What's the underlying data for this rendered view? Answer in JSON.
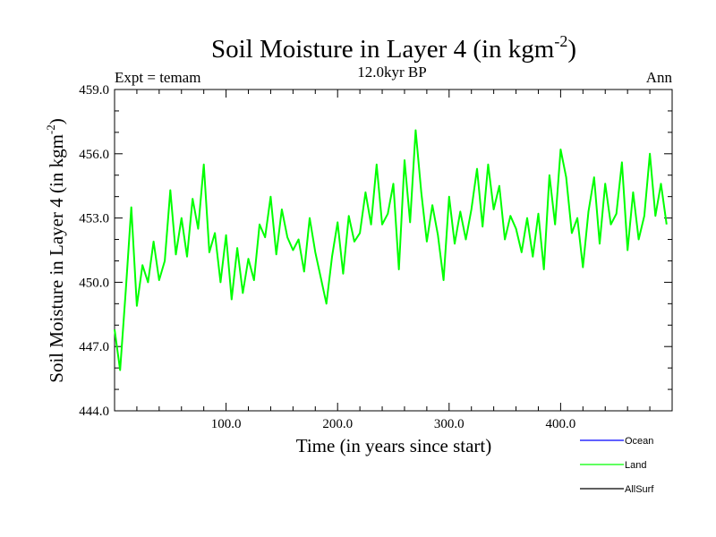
{
  "chart_data": {
    "type": "line",
    "title_main": "Soil Moisture in Layer 4 (in kgm",
    "title_sup": "-2",
    "title_close": ")",
    "subtitle_left": "Expt = temam",
    "subtitle_center": "12.0kyr BP",
    "subtitle_right": "Ann",
    "xlabel": "Time (in years since start)",
    "ylabel_main": "Soil Moisture in Layer 4 (in kgm",
    "ylabel_sup": "-2",
    "ylabel_close": ")",
    "xlim": [
      0,
      500
    ],
    "ylim": [
      444.0,
      459.0
    ],
    "xticks": [
      100,
      200,
      300,
      400
    ],
    "xtick_labels": [
      "100.0",
      "200.0",
      "300.0",
      "400.0"
    ],
    "yticks": [
      444,
      447,
      450,
      453,
      456,
      459
    ],
    "ytick_labels": [
      "444.0",
      "447.0",
      "450.0",
      "453.0",
      "456.0",
      "459.0"
    ],
    "legend": [
      {
        "name": "Ocean",
        "color": "#0000ff"
      },
      {
        "name": "Land",
        "color": "#00ff00"
      },
      {
        "name": "AllSurf",
        "color": "#000000"
      }
    ],
    "series": [
      {
        "name": "Land",
        "color": "#00ff00",
        "x_start": 0,
        "x_step": 5,
        "values": [
          447.8,
          445.9,
          449.6,
          453.5,
          448.9,
          450.8,
          450.0,
          451.9,
          450.1,
          451.0,
          454.3,
          451.3,
          453.0,
          451.2,
          453.9,
          452.5,
          455.5,
          451.4,
          452.3,
          450.0,
          452.2,
          449.2,
          451.6,
          449.5,
          451.1,
          450.1,
          452.7,
          452.1,
          454.0,
          451.3,
          453.4,
          452.1,
          451.5,
          452.0,
          450.5,
          453.0,
          451.4,
          450.2,
          449.0,
          451.2,
          452.8,
          450.4,
          453.1,
          451.9,
          452.3,
          454.2,
          452.7,
          455.5,
          452.7,
          453.2,
          454.6,
          450.6,
          455.7,
          452.8,
          457.1,
          454.2,
          451.9,
          453.6,
          452.2,
          450.1,
          454.0,
          451.8,
          453.3,
          452.0,
          453.4,
          455.3,
          452.6,
          455.5,
          453.4,
          454.5,
          452.0,
          453.1,
          452.5,
          451.4,
          453.0,
          451.2,
          453.2,
          450.6,
          455.0,
          452.7,
          456.2,
          454.9,
          452.3,
          453.0,
          450.7,
          453.3,
          454.9,
          451.8,
          454.6,
          452.7,
          453.2,
          455.6,
          451.5,
          454.2,
          452.0,
          453.1,
          456.0,
          453.1,
          454.6,
          452.7
        ]
      }
    ]
  }
}
